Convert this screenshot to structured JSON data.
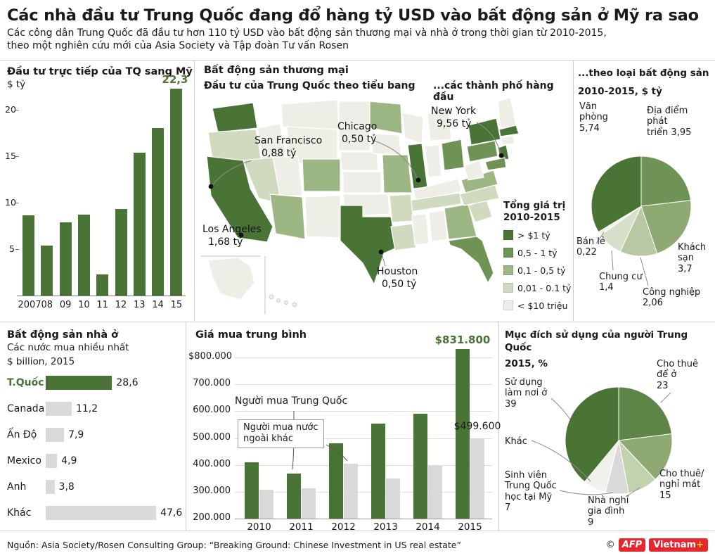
{
  "header": {
    "title": "Các nhà đầu tư Trung Quốc đang đổ hàng tỷ USD vào bất động sản ở Mỹ ra sao",
    "subtitle1": "Các công dân Trung Quốc đã đầu tư hơn 110 tỷ USD vào bất động sản thương mại và nhà ở trong thời gian từ 2010-2015,",
    "subtitle2": "theo một nghiên cứu mới của Asia Society và Tập đoàn Tư vấn Rosen"
  },
  "colors": {
    "primary_green": "#4a7336",
    "bar_gray": "#d9d9d9",
    "logo_red": "#e8262d",
    "logo_yellow": "#ffd200"
  },
  "panels": {
    "fdi": {
      "title": "Đầu tư trực tiếp của TQ sang Mỹ",
      "unit": "$ tỷ"
    },
    "commercial": {
      "title": "Bất động sản thương mại",
      "subtitle": "Đầu tư của Trung Quốc theo tiểu bang",
      "note": "...các thành phố hàng đầu",
      "legend_title1": "Tổng giá trị",
      "legend_title2": "2010-2015",
      "legend": [
        {
          "label": "> $1 tỷ",
          "color": "#4a7336"
        },
        {
          "label": "0,5 - 1 tỷ",
          "color": "#6f9355"
        },
        {
          "label": "0,1 - 0,5 tỷ",
          "color": "#9db784"
        },
        {
          "label": "0,01 - 0.1 tỷ",
          "color": "#cfdabf"
        },
        {
          "label": "< $10 triệu",
          "color": "#eeeee6"
        }
      ],
      "cities": {
        "sf": {
          "name": "San Francisco",
          "value": "0,88 tỷ"
        },
        "chi": {
          "name": "Chicago",
          "value": "0,50 tỷ"
        },
        "ny": {
          "name": "New York",
          "value": "9,56 tỷ"
        },
        "la": {
          "name": "Los Angeles",
          "value": "1,68 tỷ"
        },
        "hou": {
          "name": "Houston",
          "value": "0,50 tỷ"
        }
      }
    },
    "type_pie": {
      "title1": "...theo loại bất động sản",
      "title2": "2010-2015, $ tỷ",
      "labels": {
        "vanphong": "Văn\nphòng\n5,74",
        "diadiem": "Địa điểm phát\ntriển 3,95",
        "khachsan": "Khách\nsạn\n3,7",
        "congnghiep": "Công nghiệp\n2,06",
        "chungcu": "Chung cư\n1,4",
        "banle": "Bán lẻ\n0,22"
      }
    },
    "residential": {
      "title": "Bất động sản nhà ở",
      "sub1": "Các nước mua nhiều nhất",
      "sub2": "$ billion, 2015"
    },
    "price": {
      "title": "Giá mua trung bình",
      "s1": "Người mua Trung Quốc",
      "s2": "Người mua nước\nngoài khác",
      "max": "$831.800",
      "other": "$499.600"
    },
    "purpose": {
      "title1": "Mục đích sử dụng của người Trung Quốc",
      "title2": "2015, %",
      "labels": {
        "chothue": "Cho thuê\nđể ở\n23",
        "sudung": "Sử dụng\nlàm nơi ở\n39",
        "khac": "Khác",
        "sinhvien": "Sinh viên\nTrung Quốc\nhọc tại Mỹ\n7",
        "nhanghi": "Nhà nghỉ\ngia đình\n9",
        "nghimat": "Cho thuê/\nnghỉ mát\n15"
      }
    }
  },
  "chart_data": [
    {
      "type": "bar",
      "title": "Đầu tư trực tiếp của TQ sang Mỹ",
      "ylabel": "$ tỷ",
      "categories": [
        "2007",
        "08",
        "09",
        "10",
        "11",
        "12",
        "13",
        "14",
        "15"
      ],
      "values": [
        8.6,
        5.4,
        7.9,
        8.7,
        2.3,
        9.3,
        15.4,
        18.0,
        22.3
      ],
      "yticks": [
        5,
        10,
        15,
        20
      ],
      "ylim": [
        0,
        23
      ],
      "bar_color": "#4a7336",
      "top_label": "22,3"
    },
    {
      "type": "choropleth",
      "title": "Bất động sản thương mại — Đầu tư của Trung Quốc theo tiểu bang",
      "legend_title": "Tổng giá trị 2010-2015",
      "legend_classes": [
        "> $1 tỷ",
        "0,5 - 1 tỷ",
        "0,1 - 0,5 tỷ",
        "0,01 - 0.1 tỷ",
        "< $10 triệu"
      ],
      "cities": [
        {
          "name": "New York",
          "value_text": "9,56 tỷ"
        },
        {
          "name": "Los Angeles",
          "value_text": "1,68 tỷ"
        },
        {
          "name": "San Francisco",
          "value_text": "0,88 tỷ"
        },
        {
          "name": "Chicago",
          "value_text": "0,50 tỷ"
        },
        {
          "name": "Houston",
          "value_text": "0,50 tỷ"
        }
      ]
    },
    {
      "type": "pie",
      "title": "...theo loại bất động sản 2010-2015, $ tỷ",
      "start_angle_deg": 0,
      "slices": [
        {
          "label": "Địa điểm phát triển",
          "value": 3.95,
          "color": "#6f9355"
        },
        {
          "label": "Khách sạn",
          "value": 3.7,
          "color": "#8fa973"
        },
        {
          "label": "Công nghiệp",
          "value": 2.06,
          "color": "#b7c8a2"
        },
        {
          "label": "Chung cư",
          "value": 1.4,
          "color": "#d8e0ca"
        },
        {
          "label": "Bán lẻ",
          "value": 0.22,
          "color": "#f2f2ec"
        },
        {
          "label": "Văn phòng",
          "value": 5.74,
          "color": "#4a7336"
        }
      ]
    },
    {
      "type": "bar-horizontal",
      "title": "Bất động sản nhà ở — Các nước mua nhiều nhất",
      "unit": "$ billion, 2015",
      "categories": [
        "T.Quốc",
        "Canada",
        "Ấn Độ",
        "Mexico",
        "Anh",
        "Khác"
      ],
      "values": [
        28.6,
        11.2,
        7.9,
        4.9,
        3.8,
        47.6
      ],
      "value_labels": [
        "28,6",
        "11,2",
        "7,9",
        "4,9",
        "3,8",
        "47,6"
      ],
      "highlight_index": 0
    },
    {
      "type": "bar",
      "title": "Giá mua trung bình",
      "categories": [
        "2010",
        "2011",
        "2012",
        "2013",
        "2014",
        "2015"
      ],
      "series": [
        {
          "name": "Người mua Trung Quốc",
          "color": "#4a7336",
          "values": [
            410000,
            368000,
            480000,
            555000,
            590000,
            831800
          ]
        },
        {
          "name": "Người mua nước ngoài khác",
          "color": "#d9d9d9",
          "values": [
            308000,
            312000,
            405000,
            350000,
            397000,
            499600
          ]
        }
      ],
      "ylim": [
        200000,
        800000
      ],
      "ytick_labels": [
        "$800.000",
        "700.000",
        "600.000",
        "500.000",
        "400.000",
        "300.000",
        "200.000"
      ],
      "annotations": {
        "max": "$831.800",
        "other_2015": "$499.600"
      }
    },
    {
      "type": "pie",
      "title": "Mục đích sử dụng của người Trung Quốc 2015, %",
      "start_angle_deg": 0,
      "slices": [
        {
          "label": "Cho thuê để ở",
          "value": 23,
          "color": "#5f8447"
        },
        {
          "label": "Cho thuê/nghỉ mát",
          "value": 15,
          "color": "#8fa973"
        },
        {
          "label": "Nhà nghỉ gia đình",
          "value": 9,
          "color": "#c2d1ae"
        },
        {
          "label": "Sinh viên Trung Quốc học tại Mỹ",
          "value": 7,
          "color": "#d9d9d9"
        },
        {
          "label": "Khác",
          "value": 7,
          "color": "#f0f0ec",
          "value_shown": false
        },
        {
          "label": "Sử dụng làm nơi ở",
          "value": 39,
          "color": "#4a7336"
        }
      ]
    }
  ],
  "footer": {
    "source": "Nguồn: Asia Society/Rosen Consulting Group: “Breaking Ground: Chinese Investment in US real estate”",
    "copyright": "©",
    "afp": "AFP",
    "vietnam": "Vietnam",
    "plus": "+"
  }
}
